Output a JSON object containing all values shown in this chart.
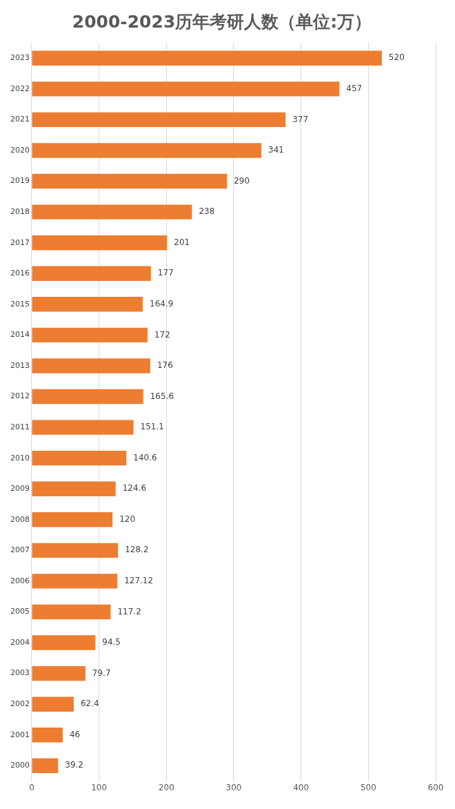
{
  "chart_data": {
    "type": "bar",
    "title": "2000-2023历年考研人数（单位:万）",
    "orientation": "horizontal",
    "categories": [
      "2023",
      "2022",
      "2021",
      "2020",
      "2019",
      "2018",
      "2017",
      "2016",
      "2015",
      "2014",
      "2013",
      "2012",
      "2011",
      "2010",
      "2009",
      "2008",
      "2007",
      "2006",
      "2005",
      "2004",
      "2003",
      "2002",
      "2001",
      "2000"
    ],
    "values": [
      520,
      457,
      377,
      341,
      290,
      238,
      201,
      177,
      164.9,
      172,
      176,
      165.6,
      151.1,
      140.6,
      124.6,
      120,
      128.2,
      127.12,
      117.2,
      94.5,
      79.7,
      62.4,
      46,
      39.2
    ],
    "color": "#ed7d31",
    "xlim": [
      0,
      600
    ],
    "xticks": [
      0,
      100,
      200,
      300,
      400,
      500,
      600
    ],
    "grid": "x",
    "data_labels": true
  }
}
